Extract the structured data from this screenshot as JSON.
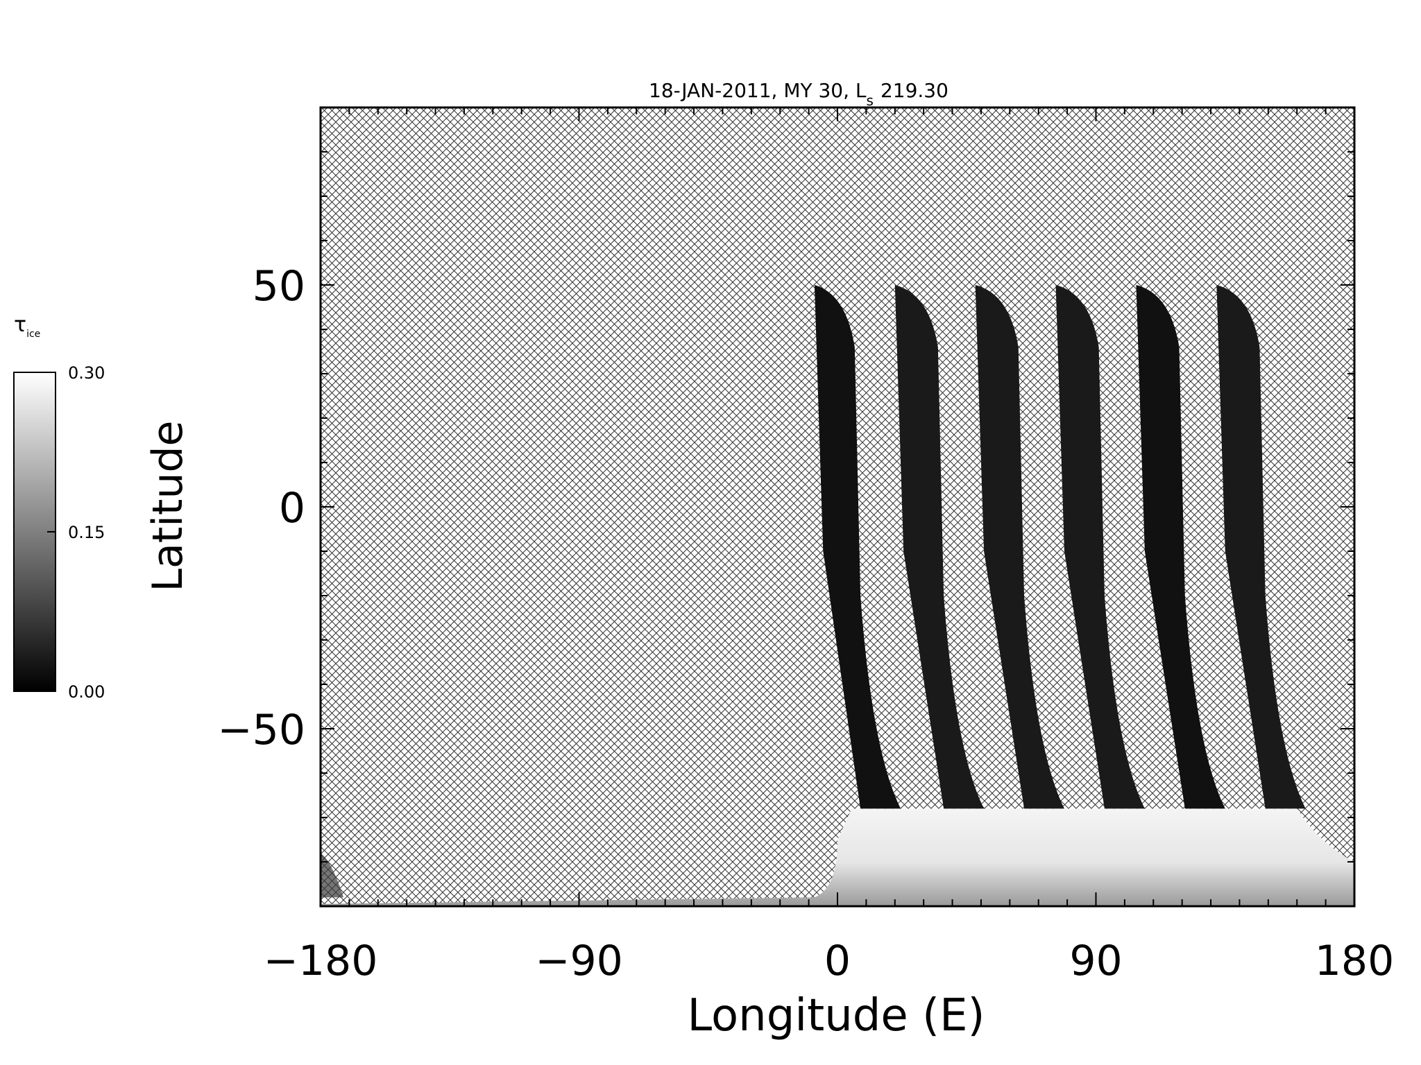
{
  "chart_data": {
    "type": "heatmap",
    "title": "18-JAN-2011, MY 30,  L",
    "title_subscript": "s",
    "title_value": "219.30",
    "xlabel": "Longitude (E)",
    "ylabel": "Latitude",
    "xlim": [
      -180,
      180
    ],
    "ylim": [
      -90,
      90
    ],
    "xticks": [
      -180,
      -90,
      0,
      90,
      180
    ],
    "xtick_labels": [
      "−180",
      "−90",
      "0",
      "90",
      "180"
    ],
    "yticks": [
      -50,
      0,
      50
    ],
    "ytick_labels": [
      "−50",
      "0",
      "50"
    ],
    "missing_data_pattern": "cross-hatch",
    "colorbar": {
      "label_symbol": "τ",
      "label_subscript": "ice",
      "ticks": [
        0.0,
        0.15,
        0.3
      ],
      "tick_labels": [
        "0.00",
        "0.15",
        "0.30"
      ],
      "colormap": "grayscale",
      "color_min": "#000000",
      "color_max": "#ffffff"
    },
    "swaths": [
      {
        "top_left_lon": -8,
        "top_right_lon": 6,
        "bottom_lon": 8,
        "top_lat": 50,
        "value": 0.02
      },
      {
        "top_left_lon": 20,
        "top_right_lon": 35,
        "bottom_lon": 37,
        "top_lat": 50,
        "value": 0.03
      },
      {
        "top_left_lon": 48,
        "top_right_lon": 63,
        "bottom_lon": 65,
        "top_lat": 50,
        "value": 0.03
      },
      {
        "top_left_lon": 76,
        "top_right_lon": 91,
        "bottom_lon": 93,
        "top_lat": 50,
        "value": 0.03
      },
      {
        "top_left_lon": 104,
        "top_right_lon": 119,
        "bottom_lon": 121,
        "top_lat": 50,
        "value": 0.02
      },
      {
        "top_left_lon": 132,
        "top_right_lon": 147,
        "bottom_lon": 149,
        "top_lat": 50,
        "value": 0.03
      }
    ],
    "polar_region": {
      "lon_range": [
        0,
        180
      ],
      "lat_range": [
        -90,
        -68
      ],
      "value": 0.28
    }
  }
}
